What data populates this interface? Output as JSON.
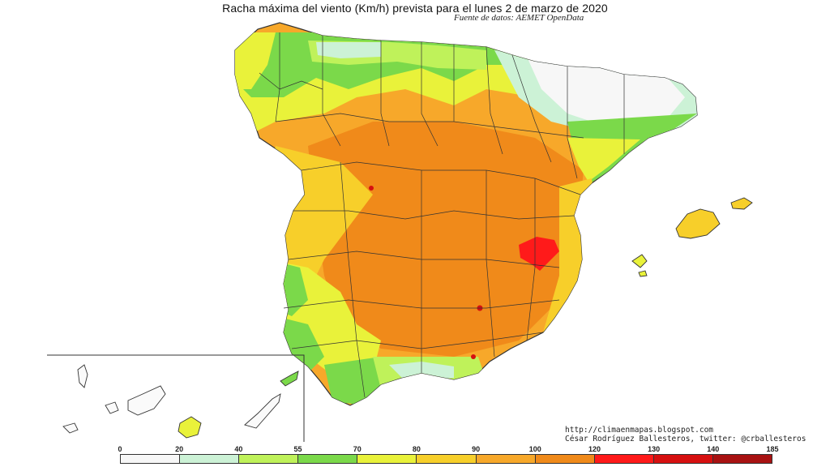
{
  "map": {
    "title": "Racha máxima del viento (Km/h) prevista para el lunes 2 de marzo de 2020",
    "source": "Fuente de datos: AEMET OpenData",
    "credits": [
      "http://climaenmapas.blogspot.com",
      "César Rodríguez Ballesteros, twitter: @crballesteros"
    ],
    "region": "Spain",
    "colors": {
      "c0_20": "#f7f7f7",
      "c20_40": "#ccf2d6",
      "c40_55": "#bff25a",
      "c55_70": "#7bd94a",
      "c70_80": "#e9f23a",
      "c80_90": "#f7cf2a",
      "c90_100": "#f7a82a",
      "c100_120": "#f08a1a",
      "c120_130": "#ff1a1a",
      "c130_140": "#d61010",
      "c140_185": "#a81212"
    }
  },
  "legend": {
    "ticks": [
      "0",
      "20",
      "40",
      "55",
      "70",
      "80",
      "90",
      "100",
      "120",
      "130",
      "140",
      "185"
    ],
    "bins": [
      {
        "from": 0,
        "to": 20,
        "color": "#f7f7f7"
      },
      {
        "from": 20,
        "to": 40,
        "color": "#ccf2d6"
      },
      {
        "from": 40,
        "to": 55,
        "color": "#bff25a"
      },
      {
        "from": 55,
        "to": 70,
        "color": "#7bd94a"
      },
      {
        "from": 70,
        "to": 80,
        "color": "#e9f23a"
      },
      {
        "from": 80,
        "to": 90,
        "color": "#f7cf2a"
      },
      {
        "from": 90,
        "to": 100,
        "color": "#f7a82a"
      },
      {
        "from": 100,
        "to": 120,
        "color": "#f08a1a"
      },
      {
        "from": 120,
        "to": 130,
        "color": "#ff1a1a"
      },
      {
        "from": 130,
        "to": 140,
        "color": "#d61010"
      },
      {
        "from": 140,
        "to": 185,
        "color": "#a81212"
      }
    ]
  }
}
